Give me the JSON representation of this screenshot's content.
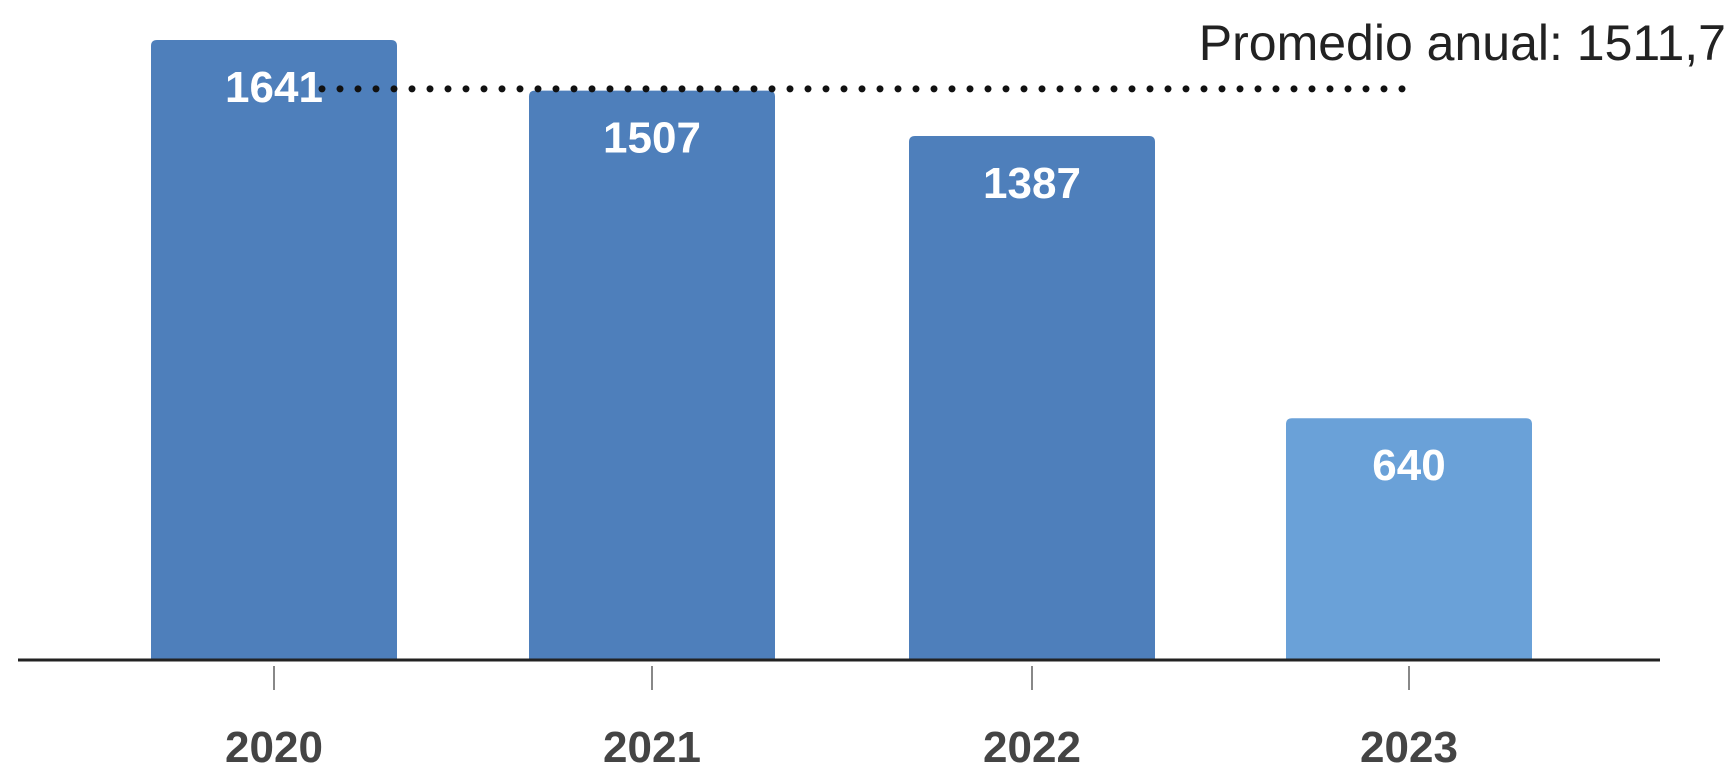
{
  "chart_data": {
    "type": "bar",
    "categories": [
      "2020",
      "2021",
      "2022",
      "2023"
    ],
    "values": [
      1641,
      1507,
      1387,
      640
    ],
    "data_labels": [
      "1641",
      "1507",
      "1387",
      "640"
    ],
    "ylim": [
      0,
      1641
    ],
    "grid": false,
    "legend": "none",
    "reference_line": {
      "value": 1511.7,
      "label": "Promedio anual: 1511,7",
      "style": "dotted"
    },
    "colors": {
      "bar": "#4e7fbb",
      "bar_highlight": "#6aa1d8",
      "axis": "#222222",
      "tick_label": "#444444",
      "data_label": "#ffffff",
      "reference_line": "#111111"
    },
    "highlight_categories": [
      "2023"
    ]
  }
}
